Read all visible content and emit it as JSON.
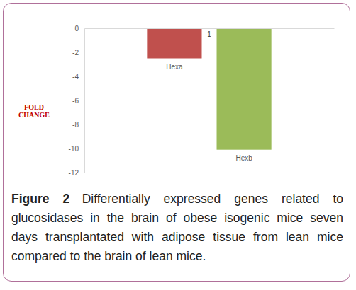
{
  "chart_data": {
    "type": "bar",
    "caption_label": "Figure 2",
    "caption": "Differentially expressed genes related to glucosidases in the brain of obese isogenic mice seven days transplantated with adipose tissue from lean mice compared to the brain of lean mice.",
    "ylabel": "FOLD CHANGE",
    "annotations": [
      "1"
    ],
    "categories": [
      "Hexa",
      "Hexb"
    ],
    "values": [
      -2.5,
      -10.1
    ],
    "colors": [
      "#c0504d",
      "#9bbb59"
    ],
    "ylim": [
      -12,
      0
    ],
    "yticks": [
      -12,
      -10,
      -8,
      -6,
      -4,
      -2,
      0
    ],
    "grid": false
  }
}
